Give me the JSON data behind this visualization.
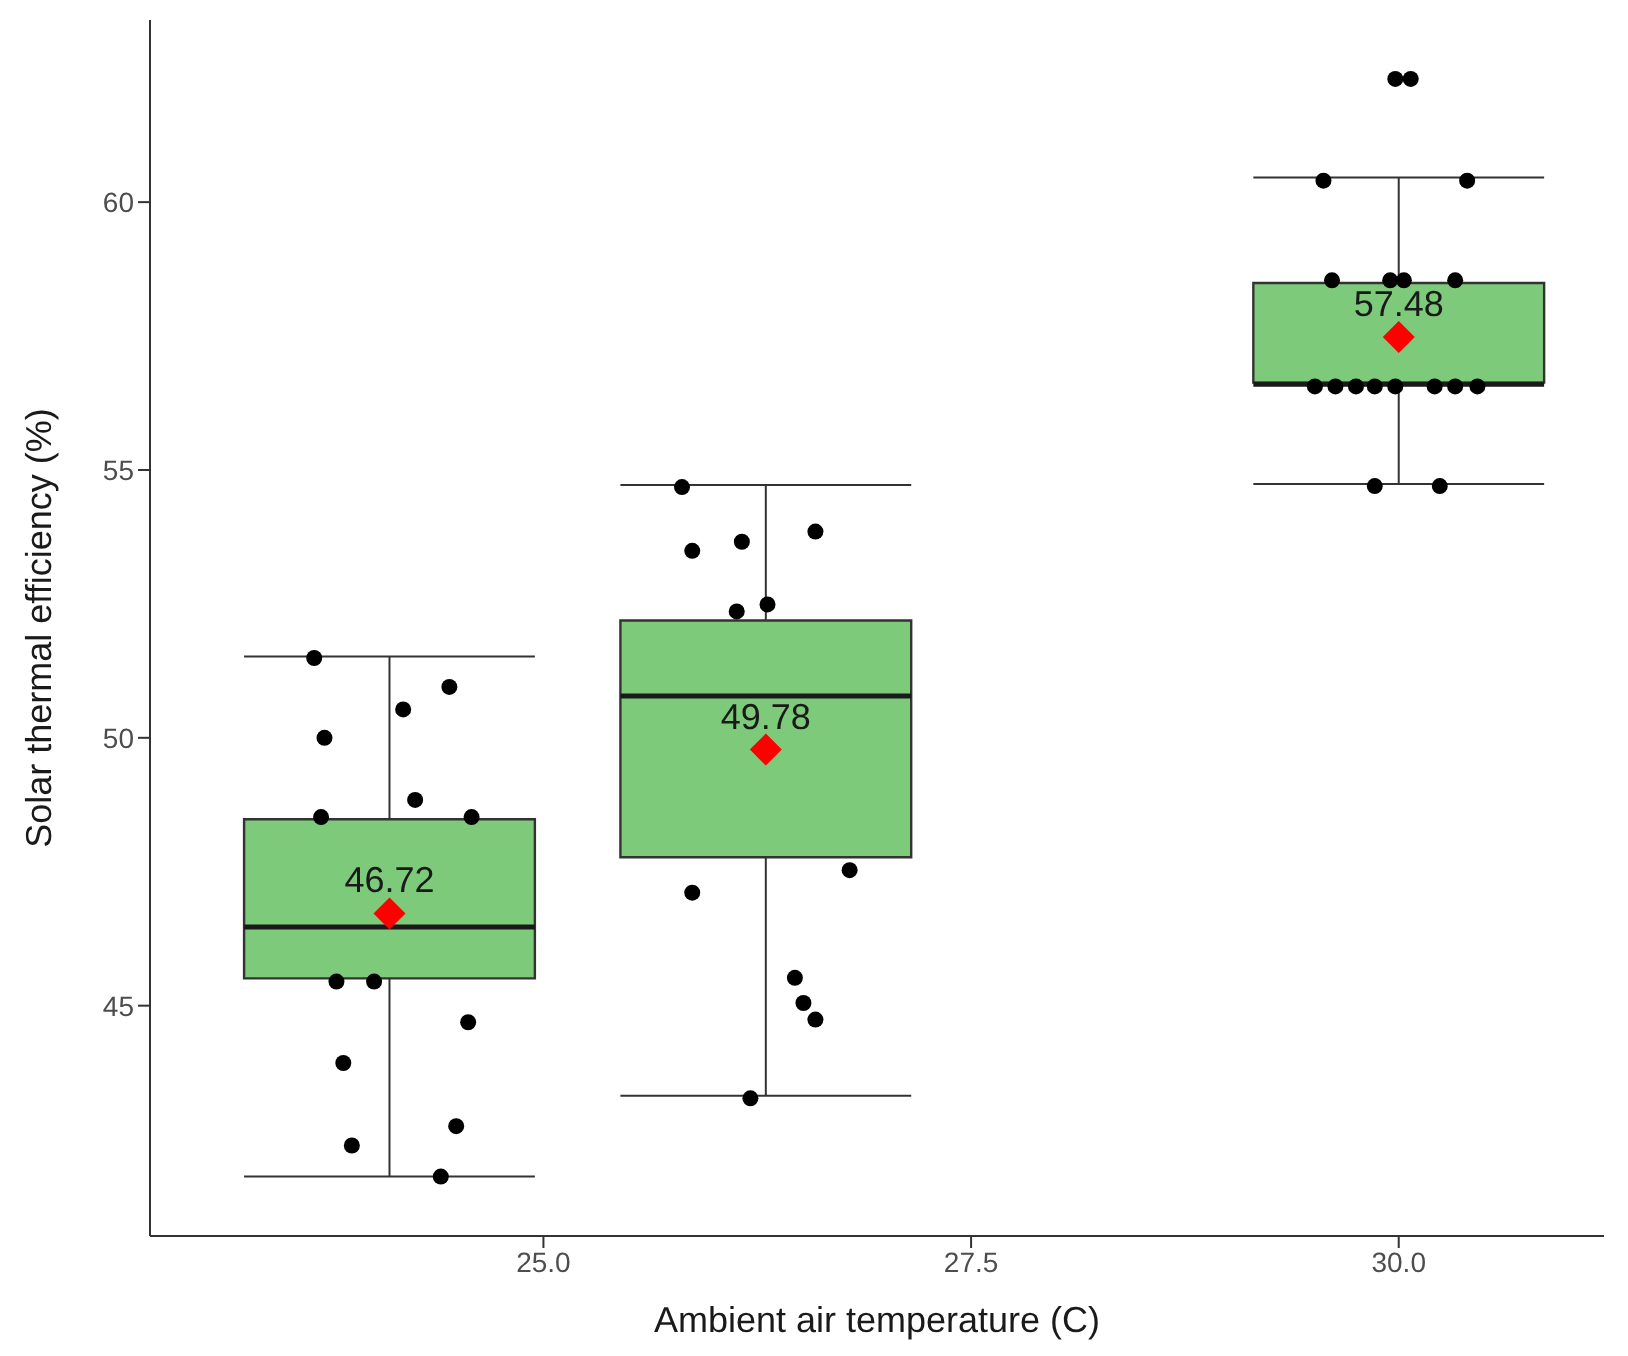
{
  "chart_data": {
    "type": "box",
    "xlabel": "Ambient air temperature (C)",
    "ylabel": "Solar thermal efficiency (%)",
    "x": [
      24.1,
      26.3,
      30.0
    ],
    "boxes": [
      {
        "low": 41.81,
        "q1": 45.51,
        "median": 46.47,
        "q3": 48.48,
        "high": 51.52
      },
      {
        "low": 43.32,
        "q1": 47.77,
        "median": 50.78,
        "q3": 52.19,
        "high": 54.72
      },
      {
        "low": 54.74,
        "q1": 56.63,
        "median": 56.6,
        "q3": 58.49,
        "high": 60.46
      }
    ],
    "color": "#7dcb7a",
    "series": [
      {
        "type": "scatter",
        "color": "#000000",
        "marker": "circle",
        "x": [
          23.66,
          24.45,
          24.18,
          23.72,
          24.25,
          23.7,
          24.58,
          23.79,
          24.01,
          24.56,
          23.83,
          24.49,
          23.88,
          24.4,
          25.81,
          25.87,
          26.16,
          26.59,
          26.13,
          26.31,
          26.79,
          25.87,
          26.47,
          26.52,
          26.59,
          26.21,
          29.98,
          30.07,
          29.56,
          30.4,
          29.61,
          29.95,
          30.03,
          30.33,
          29.51,
          29.63,
          29.75,
          29.86,
          29.98,
          30.21,
          30.33,
          30.46,
          29.86,
          30.24
        ],
        "values": [
          51.49,
          50.95,
          50.53,
          50.0,
          48.84,
          48.52,
          48.52,
          45.45,
          45.45,
          44.69,
          43.93,
          42.75,
          42.39,
          41.81,
          54.68,
          53.49,
          53.66,
          53.85,
          52.36,
          52.49,
          47.53,
          47.11,
          45.52,
          45.05,
          44.74,
          43.27,
          62.3,
          62.3,
          60.4,
          60.4,
          58.54,
          58.54,
          58.54,
          58.54,
          56.56,
          56.56,
          56.56,
          56.56,
          56.56,
          56.56,
          56.56,
          56.56,
          54.7,
          54.7
        ]
      },
      {
        "type": "scatter",
        "color": "#ff0000",
        "marker": "diamond",
        "x": [
          24.1,
          26.3,
          30.0
        ],
        "values": [
          46.72,
          49.78,
          57.48
        ],
        "value_labels": [
          "46.72",
          "49.78",
          "57.48"
        ]
      }
    ],
    "xlim": [
      22.7,
      31.2
    ],
    "xticks": [
      {
        "value": 25,
        "label": "25.0"
      },
      {
        "value": 27.5,
        "label": "27.5"
      },
      {
        "value": 30,
        "label": "30.0"
      }
    ],
    "ylim": [
      40.7,
      63.4
    ],
    "yticks": [
      45,
      50,
      55,
      60
    ],
    "grid": false
  }
}
